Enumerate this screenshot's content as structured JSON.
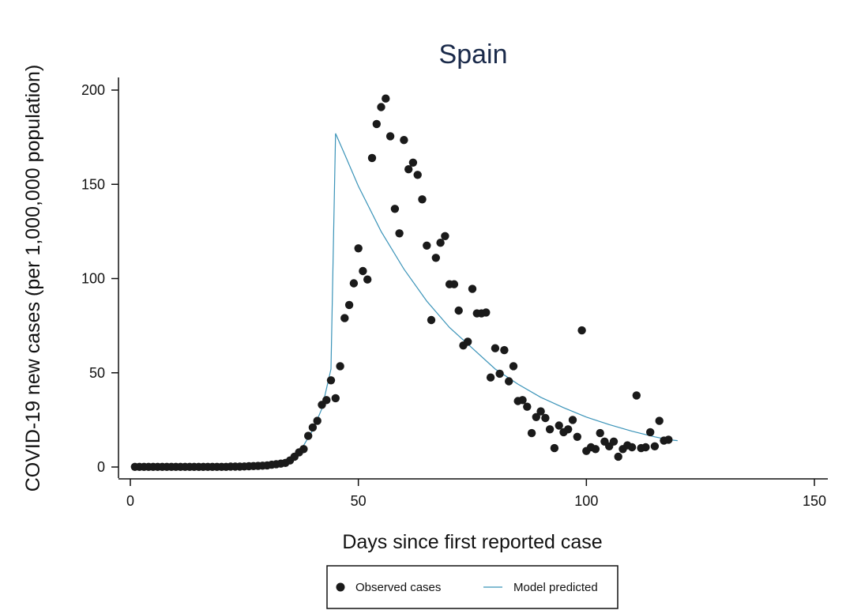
{
  "chart_data": {
    "type": "scatter",
    "title": "Spain",
    "xlabel": "Days since first reported case",
    "ylabel": "COVID-19 new cases (per 1,000,000 population)",
    "xlim": [
      0,
      150
    ],
    "ylim": [
      0,
      200
    ],
    "xticks": [
      0,
      50,
      100,
      150
    ],
    "yticks": [
      0,
      50,
      100,
      150,
      200
    ],
    "grid": false,
    "legend_position": "bottom",
    "series": [
      {
        "name": "Observed cases",
        "kind": "scatter",
        "color": "#1a1a1a",
        "points": [
          [
            1,
            0.1
          ],
          [
            2,
            0.1
          ],
          [
            3,
            0.1
          ],
          [
            4,
            0.1
          ],
          [
            5,
            0.1
          ],
          [
            6,
            0.1
          ],
          [
            7,
            0.1
          ],
          [
            8,
            0.1
          ],
          [
            9,
            0.1
          ],
          [
            10,
            0.1
          ],
          [
            11,
            0.1
          ],
          [
            12,
            0.1
          ],
          [
            13,
            0.1
          ],
          [
            14,
            0.1
          ],
          [
            15,
            0.1
          ],
          [
            16,
            0.1
          ],
          [
            17,
            0.1
          ],
          [
            18,
            0.1
          ],
          [
            19,
            0.1
          ],
          [
            20,
            0.1
          ],
          [
            21,
            0.1
          ],
          [
            22,
            0.2
          ],
          [
            23,
            0.2
          ],
          [
            24,
            0.2
          ],
          [
            25,
            0.3
          ],
          [
            26,
            0.4
          ],
          [
            27,
            0.5
          ],
          [
            28,
            0.6
          ],
          [
            29,
            0.7
          ],
          [
            30,
            0.9
          ],
          [
            31,
            1.2
          ],
          [
            32,
            1.5
          ],
          [
            33,
            1.8
          ],
          [
            34,
            2.2
          ],
          [
            35,
            3.5
          ],
          [
            36,
            5.5
          ],
          [
            37,
            7.8
          ],
          [
            38,
            9.5
          ],
          [
            39,
            16.5
          ],
          [
            40,
            21
          ],
          [
            41,
            24.5
          ],
          [
            42,
            33
          ],
          [
            43,
            35.5
          ],
          [
            44,
            46
          ],
          [
            45,
            36.5
          ],
          [
            46,
            53.5
          ],
          [
            47,
            79
          ],
          [
            48,
            86
          ],
          [
            49,
            97.5
          ],
          [
            50,
            116
          ],
          [
            51,
            104
          ],
          [
            52,
            99.5
          ],
          [
            53,
            164
          ],
          [
            54,
            182
          ],
          [
            55,
            191
          ],
          [
            56,
            195.5
          ],
          [
            57,
            175.5
          ],
          [
            58,
            137
          ],
          [
            59,
            124
          ],
          [
            60,
            173.5
          ],
          [
            61,
            158
          ],
          [
            62,
            161.5
          ],
          [
            63,
            155
          ],
          [
            64,
            142
          ],
          [
            65,
            117.5
          ],
          [
            66,
            78
          ],
          [
            67,
            111
          ],
          [
            68,
            119
          ],
          [
            69,
            122.5
          ],
          [
            70,
            97
          ],
          [
            71,
            97
          ],
          [
            72,
            83
          ],
          [
            73,
            64.5
          ],
          [
            74,
            66.5
          ],
          [
            75,
            94.5
          ],
          [
            76,
            81.5
          ],
          [
            77,
            81.5
          ],
          [
            78,
            82
          ],
          [
            79,
            47.5
          ],
          [
            80,
            63
          ],
          [
            81,
            49.5
          ],
          [
            82,
            62
          ],
          [
            83,
            45.5
          ],
          [
            84,
            53.5
          ],
          [
            85,
            35
          ],
          [
            86,
            35.5
          ],
          [
            87,
            32
          ],
          [
            88,
            18
          ],
          [
            89,
            26.5
          ],
          [
            90,
            29.5
          ],
          [
            91,
            26
          ],
          [
            92,
            20
          ],
          [
            93,
            10
          ],
          [
            94,
            22
          ],
          [
            95,
            18.5
          ],
          [
            96,
            20
          ],
          [
            97,
            25
          ],
          [
            98,
            16
          ],
          [
            99,
            72.5
          ],
          [
            100,
            8.5
          ],
          [
            101,
            10.5
          ],
          [
            102,
            9.5
          ],
          [
            103,
            18
          ],
          [
            104,
            13.5
          ],
          [
            105,
            11
          ],
          [
            106,
            13.5
          ],
          [
            107,
            5.5
          ],
          [
            108,
            9.5
          ],
          [
            109,
            11.5
          ],
          [
            110,
            10.5
          ],
          [
            111,
            38
          ],
          [
            112,
            10
          ],
          [
            113,
            10.5
          ],
          [
            114,
            18.5
          ],
          [
            115,
            11
          ],
          [
            116,
            24.5
          ],
          [
            117,
            14
          ],
          [
            118,
            14.5
          ]
        ]
      },
      {
        "name": "Model predicted",
        "kind": "line",
        "color": "#3a93b8",
        "points": [
          [
            1,
            0
          ],
          [
            5,
            0
          ],
          [
            10,
            0
          ],
          [
            15,
            0
          ],
          [
            20,
            0
          ],
          [
            25,
            0.3
          ],
          [
            28,
            0.7
          ],
          [
            30,
            1.2
          ],
          [
            32,
            2
          ],
          [
            34,
            3.6
          ],
          [
            36,
            6.5
          ],
          [
            38,
            11.5
          ],
          [
            40,
            19.5
          ],
          [
            42,
            31
          ],
          [
            44,
            52
          ],
          [
            45,
            177
          ],
          [
            47,
            166
          ],
          [
            50,
            149
          ],
          [
            55,
            125
          ],
          [
            60,
            105
          ],
          [
            65,
            88
          ],
          [
            70,
            74
          ],
          [
            75,
            63
          ],
          [
            80,
            52
          ],
          [
            85,
            44
          ],
          [
            90,
            37
          ],
          [
            95,
            31.5
          ],
          [
            100,
            26.5
          ],
          [
            105,
            22.5
          ],
          [
            110,
            19
          ],
          [
            115,
            16
          ],
          [
            118,
            14.5
          ],
          [
            120,
            14
          ]
        ]
      }
    ]
  }
}
